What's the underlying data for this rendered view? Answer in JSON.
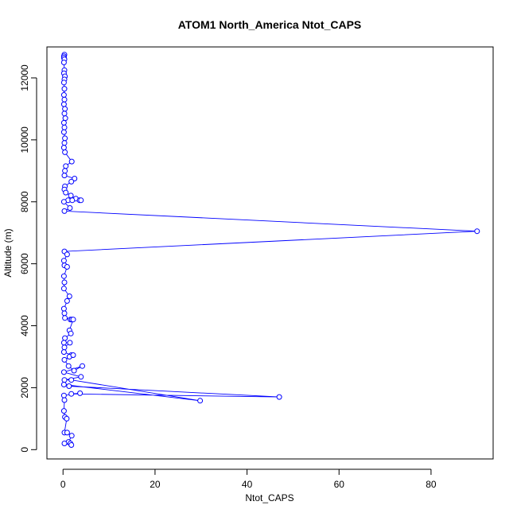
{
  "chart_data": {
    "type": "scatter",
    "title": "ATOM1 North_America Ntot_CAPS",
    "xlabel": "Ntot_CAPS",
    "ylabel": "Altitude (m)",
    "xlim": [
      -3.5,
      93.5
    ],
    "ylim": [
      -300,
      13000
    ],
    "xticks": [
      0,
      20,
      40,
      60,
      80
    ],
    "yticks": [
      0,
      2000,
      4000,
      6000,
      8000,
      10000,
      12000
    ],
    "grid": false,
    "legend": "none",
    "color": "#0000ff",
    "series": [
      {
        "marker": "open-circle",
        "connected": true,
        "points": [
          [
            0.3,
            12750
          ],
          [
            0.2,
            12700
          ],
          [
            0.2,
            12650
          ],
          [
            0.3,
            12600
          ],
          [
            0.2,
            12500
          ],
          [
            0.3,
            12250
          ],
          [
            0.2,
            12150
          ],
          [
            0.4,
            12050
          ],
          [
            0.3,
            11950
          ],
          [
            0.2,
            11850
          ],
          [
            0.3,
            11650
          ],
          [
            0.2,
            11450
          ],
          [
            0.3,
            11300
          ],
          [
            0.2,
            11150
          ],
          [
            0.4,
            11000
          ],
          [
            0.3,
            10850
          ],
          [
            0.5,
            10700
          ],
          [
            0.2,
            10550
          ],
          [
            0.3,
            10400
          ],
          [
            0.2,
            10250
          ],
          [
            0.4,
            10050
          ],
          [
            0.3,
            9900
          ],
          [
            0.2,
            9750
          ],
          [
            0.4,
            9600
          ],
          [
            1.9,
            9300
          ],
          [
            0.6,
            9150
          ],
          [
            0.4,
            9000
          ],
          [
            0.3,
            8850
          ],
          [
            2.5,
            8750
          ],
          [
            1.8,
            8650
          ],
          [
            0.4,
            8500
          ],
          [
            0.3,
            8400
          ],
          [
            0.6,
            8300
          ],
          [
            1.7,
            8200
          ],
          [
            2.8,
            8100
          ],
          [
            3.6,
            8050
          ],
          [
            3.9,
            8050
          ],
          [
            1.1,
            8050
          ],
          [
            2.0,
            8050
          ],
          [
            0.2,
            8000
          ],
          [
            1.5,
            7800
          ],
          [
            0.3,
            7700
          ],
          [
            90.0,
            7050
          ],
          [
            0.3,
            6400
          ],
          [
            0.9,
            6300
          ],
          [
            0.2,
            6100
          ],
          [
            0.3,
            5950
          ],
          [
            0.9,
            5900
          ],
          [
            0.2,
            5600
          ],
          [
            0.3,
            5400
          ],
          [
            0.2,
            5200
          ],
          [
            1.4,
            4950
          ],
          [
            0.9,
            4800
          ],
          [
            0.2,
            4550
          ],
          [
            0.3,
            4400
          ],
          [
            0.4,
            4250
          ],
          [
            1.6,
            4200
          ],
          [
            1.9,
            4200
          ],
          [
            2.2,
            4200
          ],
          [
            1.4,
            3850
          ],
          [
            1.7,
            3750
          ],
          [
            0.4,
            3600
          ],
          [
            0.2,
            3450
          ],
          [
            1.5,
            3450
          ],
          [
            0.3,
            3300
          ],
          [
            0.2,
            3150
          ],
          [
            1.8,
            3050
          ],
          [
            1.4,
            3000
          ],
          [
            2.2,
            3050
          ],
          [
            0.3,
            2900
          ],
          [
            1.2,
            2700
          ],
          [
            2.4,
            2550
          ],
          [
            4.2,
            2700
          ],
          [
            0.2,
            2500
          ],
          [
            3.9,
            2350
          ],
          [
            0.3,
            2250
          ],
          [
            1.8,
            2250
          ],
          [
            29.8,
            1580
          ],
          [
            0.2,
            2100
          ],
          [
            1.3,
            2050
          ],
          [
            47.0,
            1700
          ],
          [
            1.8,
            1800
          ],
          [
            3.7,
            1820
          ],
          [
            0.2,
            1750
          ],
          [
            0.3,
            1600
          ],
          [
            0.2,
            1250
          ],
          [
            0.4,
            1050
          ],
          [
            0.8,
            1000
          ],
          [
            0.3,
            550
          ],
          [
            0.9,
            550
          ],
          [
            1.9,
            450
          ],
          [
            1.2,
            250
          ],
          [
            1.6,
            200
          ],
          [
            0.3,
            200
          ],
          [
            1.8,
            150
          ]
        ]
      }
    ]
  }
}
